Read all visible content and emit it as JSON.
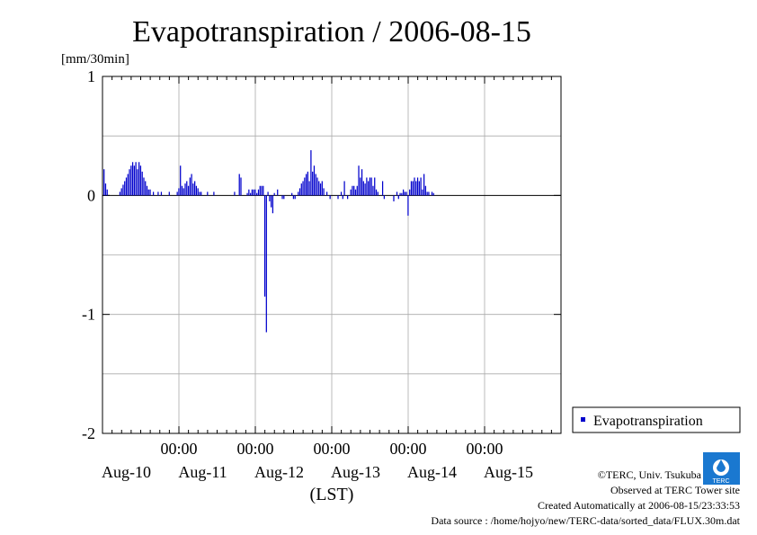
{
  "chart_data": {
    "type": "bar",
    "title": "Evapotranspiration / 2006-08-15",
    "ylabel": "[mm/30min]",
    "xlabel": "(LST)",
    "ylim": [
      -2,
      1
    ],
    "y_ticks": [
      "1",
      "0",
      "-1",
      "-2"
    ],
    "y_tick_values": [
      1,
      0,
      -1,
      -2
    ],
    "time_ticks": [
      "00:00",
      "00:00",
      "00:00",
      "00:00",
      "00:00"
    ],
    "day_labels": [
      "Aug-10",
      "Aug-11",
      "Aug-12",
      "Aug-13",
      "Aug-14",
      "Aug-15"
    ],
    "x_range_days": [
      0,
      6
    ],
    "grid": true,
    "legend": {
      "label": "Evapotranspiration",
      "placement": "right-bottom"
    },
    "series": [
      {
        "name": "Evapotranspiration",
        "color": "#0000cc",
        "x_start_day": 0.02,
        "step_day": 0.020833,
        "values": [
          0.22,
          0.1,
          0.05,
          0,
          0,
          0,
          0,
          0,
          0,
          0,
          0.03,
          0.06,
          0.09,
          0.12,
          0.15,
          0.18,
          0.22,
          0.25,
          0.28,
          0.25,
          0.28,
          0.22,
          0.28,
          0.25,
          0.2,
          0.15,
          0.12,
          0.08,
          0.05,
          0.05,
          0,
          0.03,
          0,
          0,
          0.03,
          0,
          0.03,
          0,
          0,
          0,
          0,
          0.03,
          0,
          0,
          0,
          0,
          0.03,
          0.06,
          0.25,
          0.08,
          0.06,
          0.1,
          0.12,
          0.08,
          0.15,
          0.18,
          0.1,
          0.12,
          0.08,
          0.06,
          0.03,
          0.03,
          0,
          0,
          0,
          0.03,
          0,
          0,
          0,
          0.03,
          0,
          0,
          0,
          0,
          0,
          0,
          0,
          0,
          0,
          0,
          0,
          0,
          0.03,
          0,
          0,
          0.18,
          0.15,
          0,
          0,
          0,
          0.02,
          0.05,
          0.02,
          0.05,
          0.05,
          0.05,
          0.02,
          0.05,
          0.08,
          0.08,
          0.08,
          -0.85,
          -1.15,
          0.03,
          -0.05,
          -0.1,
          -0.15,
          0.02,
          0,
          0.05,
          0,
          0,
          -0.03,
          -0.03,
          0,
          0,
          0,
          0,
          0.02,
          -0.03,
          -0.03,
          0,
          0.03,
          0.06,
          0.1,
          0.12,
          0.15,
          0.18,
          0.2,
          0.12,
          0.38,
          0.2,
          0.25,
          0.18,
          0.15,
          0.12,
          0.1,
          0.12,
          0.06,
          0,
          0.03,
          0,
          -0.03,
          0,
          0,
          0,
          0,
          -0.03,
          0,
          0.03,
          -0.03,
          0.12,
          0,
          -0.03,
          0,
          0.05,
          0.08,
          0.08,
          0.05,
          0.08,
          0.25,
          0.15,
          0.22,
          0.12,
          0.1,
          0.15,
          0.12,
          0.15,
          0.15,
          0.08,
          0.15,
          0.05,
          0.03,
          0,
          0,
          0.12,
          -0.03,
          0,
          0,
          0,
          0,
          0,
          -0.05,
          0,
          0.03,
          -0.03,
          0.02,
          0.02,
          0.05,
          0.03,
          0.03,
          -0.17,
          0.05,
          0.12,
          0.12,
          0.15,
          0.12,
          0.15,
          0.12,
          0.15,
          0.05,
          0.18,
          0.08,
          0.03,
          0.03,
          0,
          0.03,
          0.02,
          0,
          0,
          0
        ]
      }
    ]
  },
  "footer": {
    "copyright": "©TERC, Univ. Tsukuba",
    "site": "Observed at TERC Tower site",
    "created": "Created Automatically at 2006-08-15/23:33:53",
    "source": "Data source : /home/hojyo/new/TERC-data/sorted_data/FLUX.30m.dat",
    "logo_text": "TERC"
  }
}
